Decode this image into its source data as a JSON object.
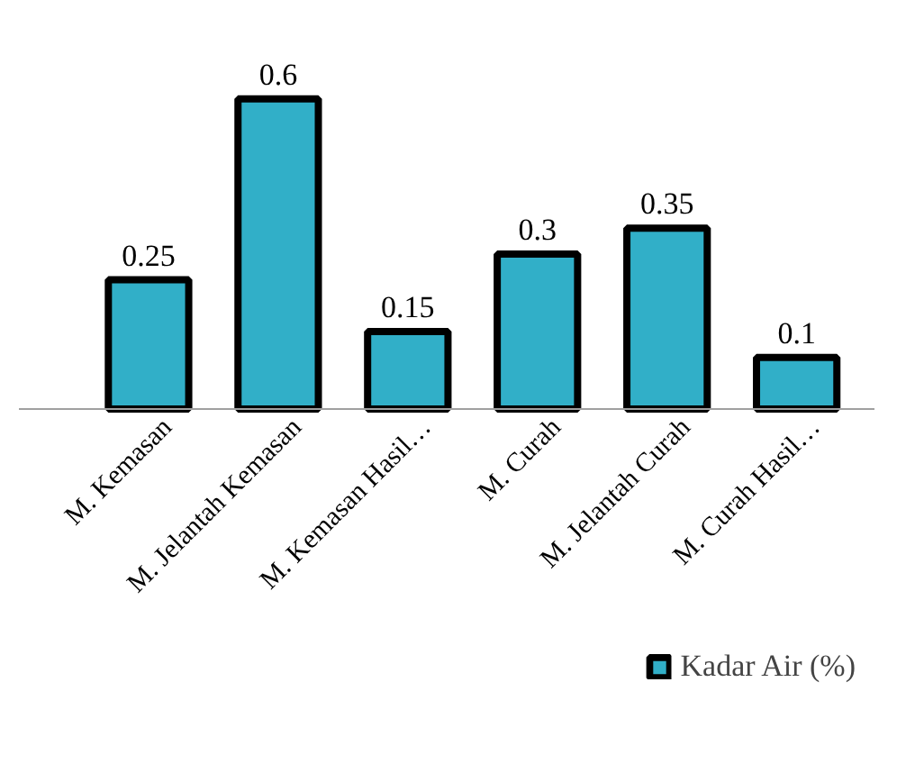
{
  "chart_data": {
    "type": "bar",
    "categories": [
      "M. Kemasan",
      "M. Jelantah Kemasan",
      "M. Kemasan Hasil…",
      "M. Curah",
      "M. Jelantah Curah",
      "M. Curah Hasil…"
    ],
    "series": [
      {
        "name": "Kadar Air (%)",
        "color": "#31afc8",
        "values": [
          0.25,
          0.6,
          0.15,
          0.3,
          0.35,
          0.1
        ]
      }
    ],
    "data_labels": true,
    "legend": "bottom right",
    "grid": false
  }
}
